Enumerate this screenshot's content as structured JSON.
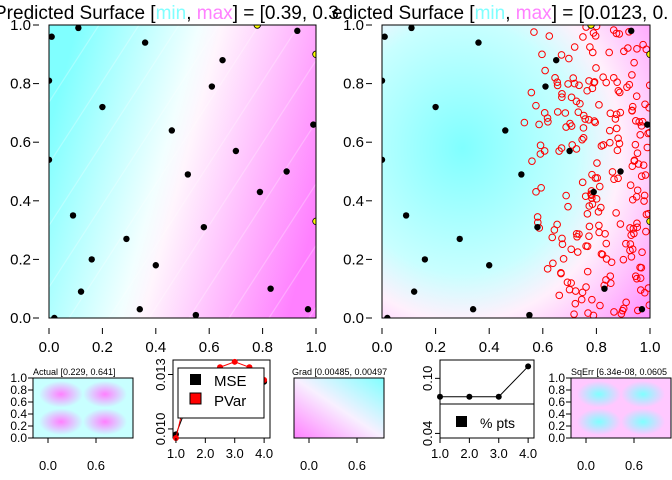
{
  "colors": {
    "min": "#80ffff",
    "max": "#ff80ff",
    "point": "#000000",
    "candidate": "#ff0000",
    "highlight": "#ffff00",
    "line_red": "#ff0000",
    "line_black": "#000000"
  },
  "chart_data": [
    {
      "id": "surface_left",
      "type": "heatmap",
      "title": {
        "prefix": "Predicted Surface [",
        "min": "min",
        "sep": ", ",
        "max": "max",
        "suffix": "] = [0.39, 0.3"
      },
      "xlim": [
        0,
        1
      ],
      "ylim": [
        0,
        1
      ],
      "xticks": [
        "0.0",
        "0.2",
        "0.4",
        "0.6",
        "0.8",
        "1.0"
      ],
      "yticks": [
        "0.0",
        "0.2",
        "0.4",
        "0.6",
        "0.8",
        "1.0"
      ],
      "surface": "linear-gradient",
      "points": [
        [
          0.01,
          0.96
        ],
        [
          0.11,
          0.99
        ],
        [
          0.0,
          0.81
        ],
        [
          0.2,
          0.72
        ],
        [
          0.36,
          0.94
        ],
        [
          0.46,
          0.64
        ],
        [
          0.52,
          0.49
        ],
        [
          0.61,
          0.79
        ],
        [
          0.65,
          0.88
        ],
        [
          0.7,
          0.57
        ],
        [
          0.79,
          0.43
        ],
        [
          0.89,
          0.5
        ],
        [
          0.93,
          0.98
        ],
        [
          0.99,
          0.66
        ],
        [
          0.0,
          0.54
        ],
        [
          0.09,
          0.35
        ],
        [
          0.29,
          0.27
        ],
        [
          0.16,
          0.2
        ],
        [
          0.4,
          0.18
        ],
        [
          0.58,
          0.31
        ],
        [
          0.12,
          0.09
        ],
        [
          0.34,
          0.03
        ],
        [
          0.55,
          0.01
        ],
        [
          0.83,
          0.1
        ],
        [
          0.97,
          0.03
        ],
        [
          0.02,
          0.0
        ]
      ],
      "highlight_points": [
        [
          0.78,
          1.0
        ],
        [
          1.0,
          0.9
        ],
        [
          1.0,
          0.33
        ]
      ]
    },
    {
      "id": "surface_right",
      "type": "heatmap",
      "title": {
        "prefix": "edicted Surface [",
        "min": "min",
        "sep": ", ",
        "max": "max",
        "suffix": "] = [0.0123, 0."
      },
      "xlim": [
        0,
        1
      ],
      "ylim": [
        0,
        1
      ],
      "xticks": [
        "0.0",
        "0.2",
        "0.4",
        "0.6",
        "0.8",
        "1.0"
      ],
      "yticks": [
        "0.0",
        "0.2",
        "0.4",
        "0.6",
        "0.8",
        "1.0"
      ],
      "surface": "radial",
      "points": [
        [
          0.01,
          0.96
        ],
        [
          0.11,
          0.99
        ],
        [
          0.0,
          0.81
        ],
        [
          0.2,
          0.72
        ],
        [
          0.36,
          0.94
        ],
        [
          0.46,
          0.64
        ],
        [
          0.52,
          0.49
        ],
        [
          0.61,
          0.79
        ],
        [
          0.65,
          0.88
        ],
        [
          0.7,
          0.57
        ],
        [
          0.79,
          0.43
        ],
        [
          0.89,
          0.5
        ],
        [
          0.93,
          0.98
        ],
        [
          0.99,
          0.66
        ],
        [
          0.0,
          0.54
        ],
        [
          0.09,
          0.35
        ],
        [
          0.29,
          0.27
        ],
        [
          0.16,
          0.2
        ],
        [
          0.4,
          0.18
        ],
        [
          0.58,
          0.31
        ],
        [
          0.12,
          0.09
        ],
        [
          0.34,
          0.03
        ],
        [
          0.55,
          0.01
        ],
        [
          0.83,
          0.1
        ],
        [
          0.97,
          0.03
        ],
        [
          0.02,
          0.0
        ]
      ],
      "highlight_points": [
        [
          0.78,
          1.0
        ],
        [
          1.0,
          0.9
        ],
        [
          1.0,
          0.33
        ]
      ],
      "candidate_region": {
        "x_from": 0.45,
        "x_to": 1.0,
        "y_from": 0.0,
        "y_to": 1.0,
        "count": 230
      }
    },
    {
      "id": "actual_small",
      "type": "heatmap",
      "title": "Actual [0.229, 0.641]",
      "xticks": [
        "0.0",
        "0.6"
      ],
      "yticks": [
        "0.0",
        "0.2",
        "0.4",
        "0.6",
        "0.8",
        "1.0"
      ],
      "surface": "blobs"
    },
    {
      "id": "mse_pvar",
      "type": "line",
      "x": [
        1.0,
        1.5,
        2.0,
        2.5,
        3.0,
        3.5,
        4.0
      ],
      "xlim": [
        0.9,
        4.2
      ],
      "ylim": [
        0.0095,
        0.0138
      ],
      "xticks": [
        "1.0",
        "2.0",
        "3.0",
        "4.0"
      ],
      "yticks": [
        "0.010",
        "0.013"
      ],
      "series": [
        {
          "name": "MSE",
          "values": [
            0.0097,
            0.0118,
            0.0117,
            0.0119,
            0.0121,
            0.0123,
            0.0126
          ]
        },
        {
          "name": "PVar",
          "values": [
            0.0095,
            0.0129,
            0.0132,
            0.0134,
            0.0137,
            0.0134,
            0.0127
          ]
        }
      ],
      "legend": "top-center"
    },
    {
      "id": "grad_small",
      "type": "heatmap",
      "title": "Grad [0.00485, 0.00497",
      "xticks": [
        "0.0",
        "0.6"
      ],
      "surface": "linear-gradient"
    },
    {
      "id": "pct_pts",
      "type": "line",
      "x": [
        1.0,
        2.0,
        3.0,
        4.0
      ],
      "xlim": [
        1.0,
        4.2
      ],
      "ylim": [
        0.035,
        0.12
      ],
      "xticks": [
        "1.0",
        "2.0",
        "3.0",
        "4.0"
      ],
      "yticks": [
        "0.04",
        "0.10"
      ],
      "series": [
        {
          "name": "% pts",
          "values": [
            0.08,
            0.08,
            0.08,
            0.113
          ]
        }
      ],
      "legend": "bottom-center"
    },
    {
      "id": "sqerr_small",
      "type": "heatmap",
      "title": "SqErr [6.34e-08, 0.0605",
      "xticks": [
        "0.0",
        "0.6"
      ],
      "yticks": [
        "0.0",
        "0.2",
        "0.4",
        "0.6",
        "0.8",
        "1.0"
      ],
      "surface": "blobs-inverse"
    }
  ]
}
